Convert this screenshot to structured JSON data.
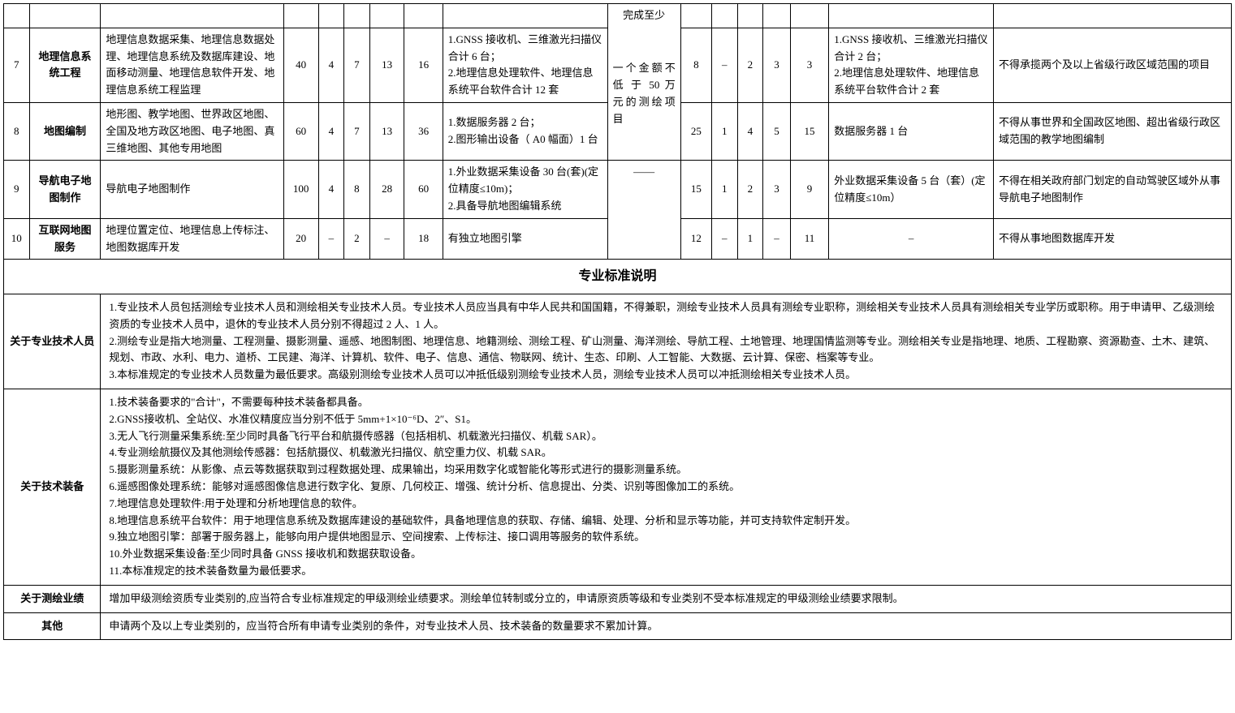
{
  "colors": {
    "border": "#000000",
    "background": "#ffffff",
    "text": "#000000"
  },
  "topFragment": {
    "line1": "完成至少",
    "line2": "一个金额不 低 于 50 万 元的测绘项目",
    "dash": "——"
  },
  "rows": [
    {
      "idx": "7",
      "name": "地理信息系统工程",
      "scope": "地理信息数据采集、地理信息数据处理、地理信息系统及数据库建设、地面移动测量、地理信息软件开发、地理信息系统工程监理",
      "c1": "40",
      "c2": "4",
      "c3": "7",
      "c4": "13",
      "c5": "16",
      "equipA": "1.GNSS 接收机、三维激光扫描仪合计 6 台；\n2.地理信息处理软件、地理信息系统平台软件合计 12 套",
      "c6": "8",
      "c7": "–",
      "c8": "2",
      "c9": "3",
      "c10": "3",
      "equipB": "1.GNSS 接收机、三维激光扫描仪合计 2 台；\n2.地理信息处理软件、地理信息系统平台软件合计 2 套",
      "restrict": "不得承揽两个及以上省级行政区域范围的项目"
    },
    {
      "idx": "8",
      "name": "地图编制",
      "scope": "地形图、教学地图、世界政区地图、全国及地方政区地图、电子地图、真三维地图、其他专用地图",
      "c1": "60",
      "c2": "4",
      "c3": "7",
      "c4": "13",
      "c5": "36",
      "equipA": "1.数据服务器 2 台；\n2.图形输出设备（ A0 幅面）1 台",
      "c6": "25",
      "c7": "1",
      "c8": "4",
      "c9": "5",
      "c10": "15",
      "equipB": "数据服务器 1 台",
      "restrict": "不得从事世界和全国政区地图、超出省级行政区域范围的教学地图编制"
    },
    {
      "idx": "9",
      "name": "导航电子地图制作",
      "scope": "导航电子地图制作",
      "c1": "100",
      "c2": "4",
      "c3": "8",
      "c4": "28",
      "c5": "60",
      "equipA": "1.外业数据采集设备 30 台(套)(定位精度≤10m)；\n2.具备导航地图编辑系统",
      "c6": "15",
      "c7": "1",
      "c8": "2",
      "c9": "3",
      "c10": "9",
      "equipB": "外业数据采集设备 5 台（套）(定位精度≤10m）",
      "restrict": "不得在相关政府部门划定的自动驾驶区域外从事导航电子地图制作"
    },
    {
      "idx": "10",
      "name": "互联网地图服务",
      "scope": "地理位置定位、地理信息上传标注、地图数据库开发",
      "c1": "20",
      "c2": "–",
      "c3": "2",
      "c4": "–",
      "c5": "18",
      "equipA": "有独立地图引擎",
      "c6": "12",
      "c7": "–",
      "c8": "1",
      "c9": "–",
      "c10": "11",
      "equipB": "–",
      "restrict": "不得从事地图数据库开发"
    }
  ],
  "sectionTitle": "专业标准说明",
  "notes": {
    "personnel": {
      "label": "关于专业技术人员",
      "text": "1.专业技术人员包括测绘专业技术人员和测绘相关专业技术人员。专业技术人员应当具有中华人民共和国国籍，不得兼职，测绘专业技术人员具有测绘专业职称，测绘相关专业技术人员具有测绘相关专业学历或职称。用于申请甲、乙级测绘资质的专业技术人员中，退休的专业技术人员分别不得超过 2 人、1 人。\n2.测绘专业是指大地测量、工程测量、摄影测量、遥感、地图制图、地理信息、地籍测绘、测绘工程、矿山测量、海洋测绘、导航工程、土地管理、地理国情监测等专业。测绘相关专业是指地理、地质、工程勘察、资源勘查、土木、建筑、规划、市政、水利、电力、道桥、工民建、海洋、计算机、软件、电子、信息、通信、物联网、统计、生态、印刷、人工智能、大数据、云计算、保密、档案等专业。\n3.本标准规定的专业技术人员数量为最低要求。高级别测绘专业技术人员可以冲抵低级别测绘专业技术人员，测绘专业技术人员可以冲抵测绘相关专业技术人员。"
    },
    "equipment": {
      "label": "关于技术装备",
      "text": "1.技术装备要求的\"合计\"，不需要每种技术装备都具备。\n2.GNSS接收机、全站仪、水准仪精度应当分别不低于 5mm+1×10⁻⁶D、2″、S1。\n3.无人飞行测量采集系统:至少同时具备飞行平台和航摄传感器（包括相机、机载激光扫描仪、机载 SAR）。\n4.专业测绘航摄仪及其他测绘传感器：包括航摄仪、机载激光扫描仪、航空重力仪、机载 SAR。\n5.摄影测量系统：从影像、点云等数据获取到过程数据处理、成果输出，均采用数字化或智能化等形式进行的摄影测量系统。\n6.遥感图像处理系统：能够对遥感图像信息进行数字化、复原、几何校正、增强、统计分析、信息提出、分类、识别等图像加工的系统。\n7.地理信息处理软件:用于处理和分析地理信息的软件。\n8.地理信息系统平台软件：用于地理信息系统及数据库建设的基础软件，具备地理信息的获取、存储、编辑、处理、分析和显示等功能，并可支持软件定制开发。\n9.独立地图引擎：部署于服务器上，能够向用户提供地图显示、空间搜索、上传标注、接口调用等服务的软件系统。\n10.外业数据采集设备:至少同时具备 GNSS 接收机和数据获取设备。\n11.本标准规定的技术装备数量为最低要求。"
    },
    "performance": {
      "label": "关于测绘业绩",
      "text": "增加甲级测绘资质专业类别的,应当符合专业标准规定的甲级测绘业绩要求。测绘单位转制或分立的，申请原资质等级和专业类别不受本标准规定的甲级测绘业绩要求限制。"
    },
    "other": {
      "label": "其他",
      "text": "申请两个及以上专业类别的，应当符合所有申请专业类别的条件，对专业技术人员、技术装备的数量要求不累加计算。"
    }
  }
}
